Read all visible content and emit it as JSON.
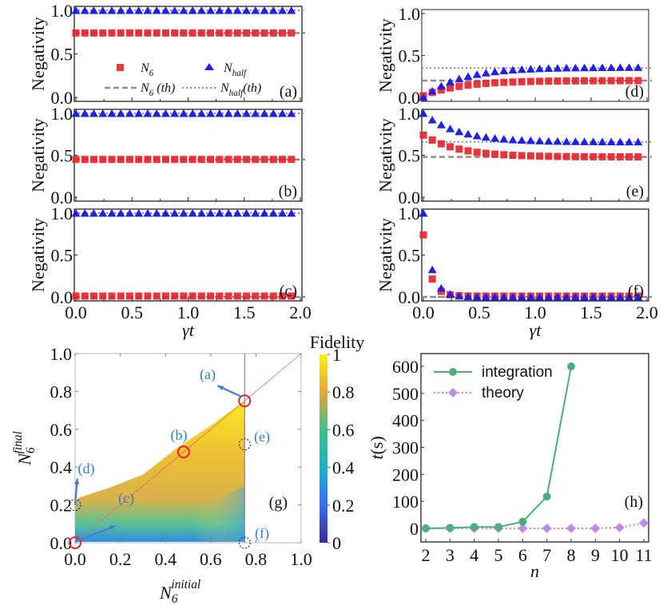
{
  "chart_data": [
    {
      "panel": "(a)",
      "type": "scatter",
      "ylabel": "Negativity",
      "xlabel": "",
      "xlim": [
        0,
        2.0
      ],
      "ylim": [
        0,
        1.0
      ],
      "yticks": [
        "0.0",
        "0.5",
        "1.0"
      ],
      "legend": {
        "items": [
          "N_6",
          "N_half",
          "N_6 (th)",
          "N_half (th)"
        ]
      },
      "series": [
        {
          "name": "N_6",
          "kind": "const",
          "value": 0.74
        },
        {
          "name": "N_half",
          "kind": "const",
          "value": 1.0
        }
      ],
      "thresholds": {
        "N_6_th": 0.74,
        "N_half_th": 1.0
      }
    },
    {
      "panel": "(b)",
      "type": "scatter",
      "ylabel": "Negativity",
      "xlim": [
        0,
        2.0
      ],
      "ylim": [
        0,
        1.0
      ],
      "yticks": [
        "0.0",
        "0.5",
        "1.0"
      ],
      "series": [
        {
          "name": "N_6",
          "kind": "const",
          "value": 0.45
        },
        {
          "name": "N_half",
          "kind": "const",
          "value": 1.0
        }
      ],
      "thresholds": {
        "N_6_th": 0.45,
        "N_half_th": 1.0
      }
    },
    {
      "panel": "(c)",
      "type": "scatter",
      "ylabel": "Negativity",
      "xlabel": "γt",
      "xlim": [
        0,
        2.0
      ],
      "ylim": [
        0,
        1.0
      ],
      "yticks": [
        "0.0",
        "0.5",
        "1.0"
      ],
      "xticks": [
        "0.0",
        "0.5",
        "1.0",
        "1.5",
        "2.0"
      ],
      "series": [
        {
          "name": "N_6",
          "kind": "const",
          "value": 0.01
        },
        {
          "name": "N_half",
          "kind": "const",
          "value": 1.0
        }
      ],
      "thresholds": {
        "N_6_th": 0.0,
        "N_half_th": 1.0
      }
    },
    {
      "panel": "(d)",
      "type": "scatter",
      "ylabel": "Negativity",
      "xlim": [
        0,
        2.0
      ],
      "ylim": [
        0,
        1.0
      ],
      "yticks": [
        "0.0",
        "0.5",
        "1.0"
      ],
      "series": [
        {
          "name": "N_6",
          "kind": "rise",
          "start": 0.02,
          "end": 0.2,
          "rate": 3.0
        },
        {
          "name": "N_half",
          "kind": "rise",
          "start": 0.0,
          "end": 0.36,
          "rate": 3.0
        }
      ],
      "thresholds": {
        "N_6_th": 0.2,
        "N_half_th": 0.35
      }
    },
    {
      "panel": "(e)",
      "type": "scatter",
      "ylabel": "Negativity",
      "xlim": [
        0,
        2.0
      ],
      "ylim": [
        0,
        1.0
      ],
      "yticks": [
        "0.0",
        "0.5",
        "1.0"
      ],
      "series": [
        {
          "name": "N_6",
          "kind": "decay",
          "start": 0.74,
          "end": 0.48,
          "rate": 3.2
        },
        {
          "name": "N_half",
          "kind": "decay",
          "start": 1.0,
          "end": 0.66,
          "rate": 3.2
        }
      ],
      "thresholds": {
        "N_6_th": 0.48,
        "N_half_th": 0.66
      }
    },
    {
      "panel": "(f)",
      "type": "scatter",
      "ylabel": "Negativity",
      "xlabel": "γt",
      "xlim": [
        0,
        2.0
      ],
      "ylim": [
        0,
        1.0
      ],
      "yticks": [
        "0.0",
        "0.5",
        "1.0"
      ],
      "xticks": [
        "0.0",
        "0.5",
        "1.0",
        "1.5",
        "2.0"
      ],
      "series": [
        {
          "name": "N_6",
          "kind": "decay",
          "start": 0.74,
          "end": 0.01,
          "rate": 16
        },
        {
          "name": "N_half",
          "kind": "decay",
          "start": 1.0,
          "end": 0.0,
          "rate": 14
        }
      ],
      "thresholds": {
        "N_6_th": 0.0,
        "N_half_th": 0.0
      }
    },
    {
      "panel": "(g)",
      "type": "heatmap",
      "xlabel": "N_6^initial",
      "ylabel": "N_6^final",
      "xlim": [
        0,
        1.0
      ],
      "ylim": [
        0,
        1.0
      ],
      "xticks": [
        "0.0",
        "0.2",
        "0.4",
        "0.6",
        "0.8",
        "1.0"
      ],
      "yticks": [
        "0.0",
        "0.2",
        "0.4",
        "0.6",
        "0.8",
        "1.0"
      ],
      "colorbar": {
        "label": "Fidelity",
        "range": [
          0,
          1
        ],
        "ticks": [
          "0",
          "0.2",
          "0.4",
          "0.6",
          "0.8",
          "1"
        ]
      },
      "vertical_line_x": 0.75,
      "diagonal": true,
      "markers": [
        {
          "label": "(a)",
          "x": 0.75,
          "y": 0.75,
          "style": "red-circle"
        },
        {
          "label": "(b)",
          "x": 0.48,
          "y": 0.48,
          "style": "red-circle"
        },
        {
          "label": "(c)",
          "x": 0.0,
          "y": 0.0,
          "style": "red-circle"
        },
        {
          "label": "(d)",
          "x": 0.0,
          "y": 0.2,
          "style": "dotted-circle"
        },
        {
          "label": "(e)",
          "x": 0.75,
          "y": 0.52,
          "style": "dotted-circle"
        },
        {
          "label": "(f)",
          "x": 0.75,
          "y": 0.0,
          "style": "dotted-circle"
        }
      ]
    },
    {
      "panel": "(h)",
      "type": "line",
      "xlabel": "n",
      "ylabel": "t(s)",
      "x": [
        2,
        3,
        4,
        5,
        6,
        7,
        8,
        9,
        10,
        11
      ],
      "xlim": [
        2,
        11
      ],
      "ylim": [
        -50,
        650
      ],
      "yticks": [
        "0",
        "100",
        "200",
        "300",
        "400",
        "500",
        "600"
      ],
      "xticks": [
        "2",
        "3",
        "4",
        "5",
        "6",
        "7",
        "8",
        "9",
        "10",
        "11"
      ],
      "series": [
        {
          "name": "integration",
          "x": [
            2,
            3,
            4,
            5,
            6,
            7,
            8
          ],
          "values": [
            0,
            2,
            5,
            5,
            25,
            118,
            600
          ],
          "color": "#4caf7a"
        },
        {
          "name": "theory",
          "x": [
            2,
            3,
            4,
            5,
            6,
            7,
            8,
            9,
            10,
            11
          ],
          "values": [
            0,
            0,
            0,
            0,
            0,
            0,
            0,
            0,
            3,
            20
          ],
          "color": "#c08be6"
        }
      ],
      "legend": "top-left"
    }
  ],
  "colors": {
    "n6": "#e8242a",
    "nhalf": "#1f1fe6",
    "th": "#8c8c8c",
    "annot": "#2a7fd4"
  }
}
